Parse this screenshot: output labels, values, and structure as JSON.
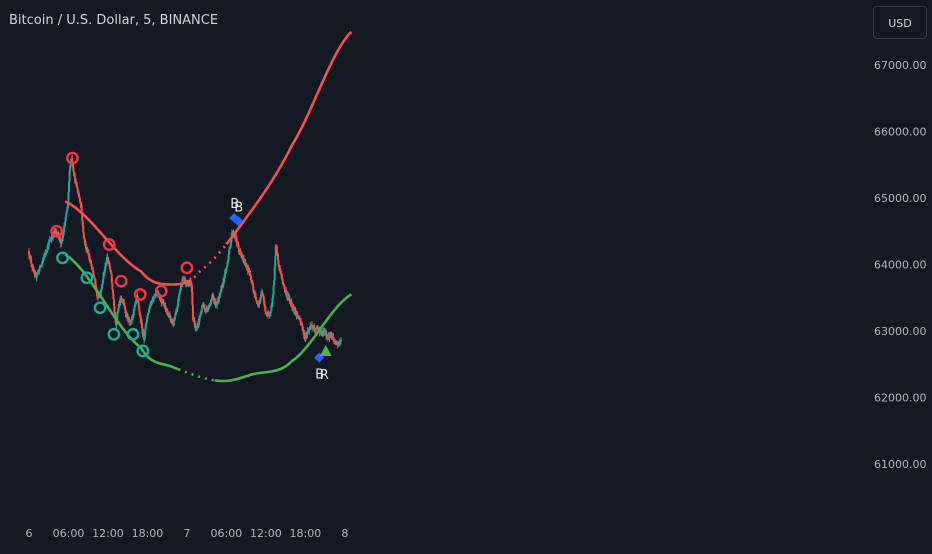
{
  "header": {
    "title": "Bitcoin / U.S. Dollar, 5, BINANCE",
    "currency": "USD"
  },
  "colors": {
    "background": "#141923",
    "up": "#26a69a",
    "down": "#ef5350",
    "upper_curve": "#ef5350",
    "lower_curve": "#4caf50",
    "resistance_marker": "#f23645",
    "support_marker": "#22ab94",
    "signal_diamond": "#2962ff",
    "signal_triangle": "#4caf50",
    "axis_text": "#b2b5be"
  },
  "chart_data": {
    "type": "candlestick",
    "title": "Bitcoin / U.S. Dollar, 5, BINANCE",
    "y_axis": {
      "ticks": [
        61000,
        62000,
        63000,
        64000,
        65000,
        66000,
        67000
      ],
      "tick_labels": [
        "61000.00",
        "62000.00",
        "63000.00",
        "64000.00",
        "65000.00",
        "66000.00",
        "67000.00"
      ],
      "ylim": [
        60300,
        67800
      ]
    },
    "x_axis": {
      "ticks": [
        0,
        6,
        12,
        18,
        24,
        30,
        36,
        42,
        48
      ],
      "tick_labels": [
        "6",
        "06:00",
        "12:00",
        "18:00",
        "7",
        "06:00",
        "12:00",
        "18:00",
        "8"
      ],
      "unit": "hours from day 6 00:00",
      "xlim": [
        0,
        49.5
      ]
    },
    "price_path": [
      [
        0,
        64200
      ],
      [
        0.5,
        64000
      ],
      [
        1,
        63800
      ],
      [
        2,
        64000
      ],
      [
        3,
        64300
      ],
      [
        4,
        64500
      ],
      [
        4.5,
        64450
      ],
      [
        5,
        64300
      ],
      [
        5.5,
        64600
      ],
      [
        6,
        64900
      ],
      [
        6.3,
        65500
      ],
      [
        6.6,
        65600
      ],
      [
        7,
        65300
      ],
      [
        7.5,
        65100
      ],
      [
        8,
        64900
      ],
      [
        8.3,
        64500
      ],
      [
        8.6,
        64300
      ],
      [
        9,
        64200
      ],
      [
        9.5,
        64000
      ],
      [
        10,
        63800
      ],
      [
        10.5,
        63500
      ],
      [
        11,
        63600
      ],
      [
        11.5,
        63900
      ],
      [
        12,
        64100
      ],
      [
        12.5,
        63900
      ],
      [
        13,
        63400
      ],
      [
        13.3,
        63100
      ],
      [
        13.6,
        63300
      ],
      [
        14,
        63500
      ],
      [
        14.5,
        63400
      ],
      [
        15,
        63200
      ],
      [
        15.5,
        63100
      ],
      [
        16,
        63300
      ],
      [
        16.5,
        63500
      ],
      [
        17,
        63200
      ],
      [
        17.3,
        63000
      ],
      [
        17.6,
        62900
      ],
      [
        18,
        63200
      ],
      [
        18.5,
        63400
      ],
      [
        19,
        63500
      ],
      [
        19.5,
        63600
      ],
      [
        20,
        63500
      ],
      [
        20.5,
        63400
      ],
      [
        21,
        63300
      ],
      [
        21.5,
        63200
      ],
      [
        22,
        63100
      ],
      [
        22.5,
        63300
      ],
      [
        23,
        63600
      ],
      [
        23.5,
        63800
      ],
      [
        24,
        63700
      ],
      [
        24.5,
        63750
      ],
      [
        24.8,
        63700
      ],
      [
        25,
        63200
      ],
      [
        25.5,
        63000
      ],
      [
        26,
        63200
      ],
      [
        26.5,
        63400
      ],
      [
        27,
        63300
      ],
      [
        27.5,
        63400
      ],
      [
        28,
        63500
      ],
      [
        28.5,
        63400
      ],
      [
        29,
        63500
      ],
      [
        29.5,
        63700
      ],
      [
        30,
        63900
      ],
      [
        30.5,
        64200
      ],
      [
        31,
        64500
      ],
      [
        31.5,
        64400
      ],
      [
        32,
        64200
      ],
      [
        32.5,
        64100
      ],
      [
        33,
        64000
      ],
      [
        33.5,
        63900
      ],
      [
        34,
        63700
      ],
      [
        34.5,
        63500
      ],
      [
        35,
        63400
      ],
      [
        35.5,
        63600
      ],
      [
        36,
        63300
      ],
      [
        36.5,
        63200
      ],
      [
        37,
        63400
      ],
      [
        37.3,
        63700
      ],
      [
        37.6,
        64300
      ],
      [
        38,
        64000
      ],
      [
        38.5,
        63800
      ],
      [
        39,
        63600
      ],
      [
        39.5,
        63500
      ],
      [
        40,
        63400
      ],
      [
        40.5,
        63300
      ],
      [
        41,
        63200
      ],
      [
        41.5,
        63100
      ],
      [
        42,
        62900
      ],
      [
        42.5,
        63000
      ],
      [
        43,
        63100
      ],
      [
        43.5,
        63000
      ],
      [
        44,
        63050
      ],
      [
        44.5,
        62950
      ],
      [
        45,
        63000
      ],
      [
        45.5,
        62900
      ],
      [
        46,
        62950
      ],
      [
        46.5,
        62850
      ],
      [
        47,
        62800
      ],
      [
        47.5,
        62850
      ]
    ],
    "series": [
      {
        "name": "",
        "role": "upper-curve",
        "type": "parabola",
        "points": [
          [
            5.5,
            64950
          ],
          [
            17,
            63900
          ],
          [
            22,
            63700
          ],
          [
            26,
            63900
          ],
          [
            33,
            64700
          ],
          [
            40,
            65800
          ],
          [
            49,
            67500
          ]
        ],
        "dotted_range": [
          24.2,
          30
        ]
      },
      {
        "name": "",
        "role": "lower-curve",
        "type": "parabola",
        "points": [
          [
            5.5,
            64150
          ],
          [
            17,
            62750
          ],
          [
            22,
            62450
          ],
          [
            29,
            62250
          ],
          [
            34,
            62350
          ],
          [
            40,
            62550
          ],
          [
            49,
            63550
          ]
        ],
        "dotted_range": [
          22.7,
          28.2
        ]
      }
    ],
    "resistance_markers": [
      [
        4.2,
        64500
      ],
      [
        6.6,
        65600
      ],
      [
        12.2,
        64300
      ],
      [
        14.0,
        63750
      ],
      [
        16.9,
        63550
      ],
      [
        20.1,
        63600
      ],
      [
        24.0,
        63950
      ]
    ],
    "support_markers": [
      [
        5.1,
        64100
      ],
      [
        8.8,
        63800
      ],
      [
        10.8,
        63350
      ],
      [
        12.9,
        62950
      ],
      [
        15.8,
        62950
      ],
      [
        17.3,
        62700
      ]
    ],
    "signals": [
      {
        "type": "diamond",
        "x": 31.2,
        "y": 64700,
        "label": "B"
      },
      {
        "type": "diamond",
        "x": 31.8,
        "y": 64650,
        "label": "B"
      },
      {
        "type": "diamond",
        "x": 44.1,
        "y": 62600,
        "label": "B"
      },
      {
        "type": "triangle",
        "x": 45.1,
        "y": 62700,
        "label": "R"
      }
    ]
  }
}
